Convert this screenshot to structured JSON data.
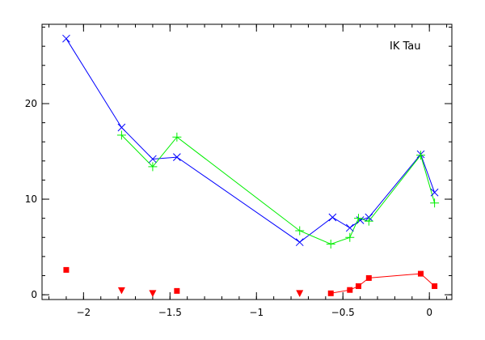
{
  "chart_data": {
    "type": "scatter",
    "title": "",
    "annotations": [
      "IK Tau"
    ],
    "xlabel": "",
    "ylabel": "",
    "xlim": [
      -2.24,
      0.13
    ],
    "ylim": [
      -0.5,
      28.3
    ],
    "x_ticks": [
      -2,
      -1.5,
      -1,
      -0.5,
      0
    ],
    "x_tick_labels": [
      "−2",
      "−1.5",
      "−1",
      "−0.5",
      "0"
    ],
    "y_ticks": [
      0,
      10,
      20
    ],
    "y_tick_labels": [
      "0",
      "10",
      "20"
    ],
    "x_minor_step": 0.1,
    "y_minor_step": 2,
    "grid": false,
    "series": [
      {
        "marker": "x",
        "color": "#0000ff",
        "line": true,
        "points": [
          [
            -2.1,
            26.8
          ],
          [
            -1.78,
            17.5
          ],
          [
            -1.6,
            14.2
          ],
          [
            -1.46,
            14.4
          ],
          [
            -0.75,
            5.5
          ],
          [
            -0.56,
            8.1
          ],
          [
            -0.46,
            7.0
          ],
          [
            -0.4,
            7.8
          ],
          [
            -0.35,
            8.1
          ],
          [
            -0.05,
            14.7
          ],
          [
            0.03,
            10.7
          ]
        ]
      },
      {
        "marker": "+",
        "color": "#00ee00",
        "line": true,
        "points": [
          [
            -1.78,
            16.7
          ],
          [
            -1.6,
            13.4
          ],
          [
            -1.46,
            16.5
          ],
          [
            -0.75,
            6.7
          ],
          [
            -0.57,
            5.3
          ],
          [
            -0.46,
            6.0
          ],
          [
            -0.41,
            8.0
          ],
          [
            -0.35,
            7.7
          ],
          [
            -0.05,
            14.6
          ],
          [
            0.03,
            9.6
          ]
        ]
      },
      {
        "marker": "square",
        "color": "#ff0000",
        "line": true,
        "points": [
          [
            -0.57,
            0.15
          ],
          [
            -0.46,
            0.5
          ],
          [
            -0.41,
            0.9
          ],
          [
            -0.35,
            1.75
          ],
          [
            -0.05,
            2.2
          ],
          [
            0.03,
            0.9
          ]
        ]
      },
      {
        "marker": "square",
        "color": "#ff0000",
        "line": false,
        "points": [
          [
            -2.1,
            2.6
          ],
          [
            -1.46,
            0.4
          ]
        ]
      },
      {
        "marker": "triangle-down",
        "color": "#ff0000",
        "line": false,
        "points": [
          [
            -1.78,
            0.4
          ],
          [
            -1.6,
            0.1
          ],
          [
            -0.75,
            0.1
          ]
        ]
      }
    ]
  }
}
